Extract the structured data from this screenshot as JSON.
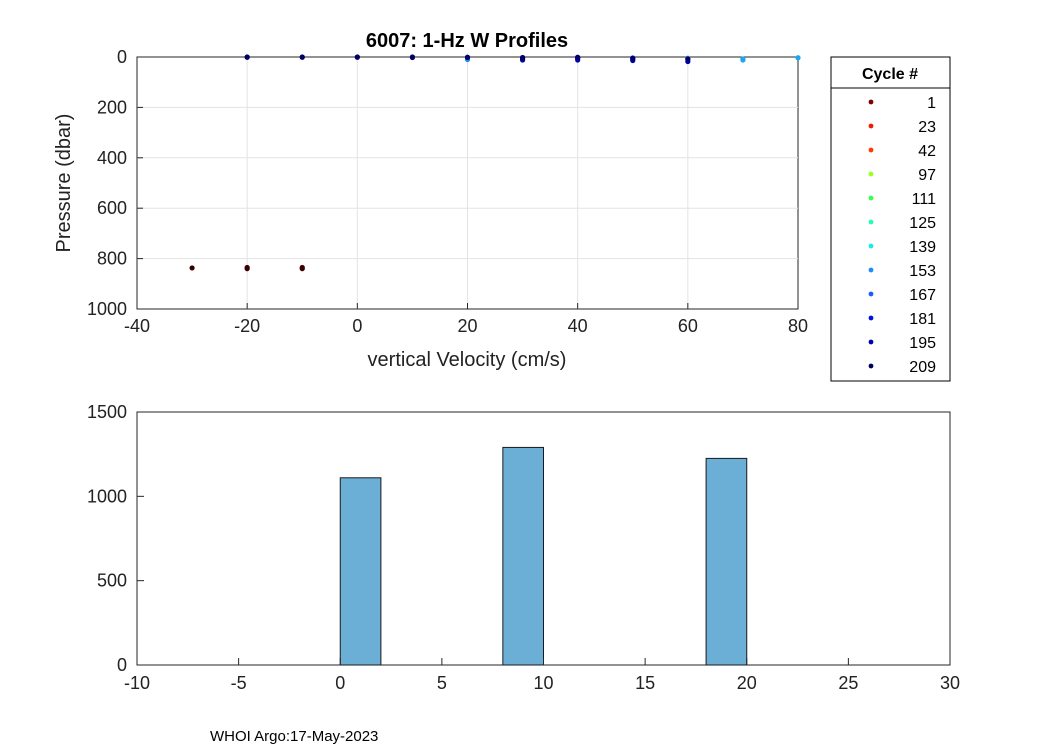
{
  "chart_data": [
    {
      "type": "scatter",
      "title": "6007: 1-Hz W Profiles",
      "xlabel": "vertical Velocity (cm/s)",
      "ylabel": "Pressure (dbar)",
      "xlim": [
        -40,
        80
      ],
      "ylim": [
        1000,
        0
      ],
      "xticks": [
        "-40",
        "-20",
        "0",
        "20",
        "40",
        "60",
        "80"
      ],
      "yticks": [
        "0",
        "200",
        "400",
        "600",
        "800",
        "1000"
      ],
      "grid": true,
      "legend": {
        "title": "Cycle #",
        "placement": "right",
        "entries": [
          {
            "label": "1",
            "color": "#800000"
          },
          {
            "label": "23",
            "color": "#ee1c00"
          },
          {
            "label": "42",
            "color": "#ff3b00"
          },
          {
            "label": "97",
            "color": "#9cff1c"
          },
          {
            "label": "111",
            "color": "#3aff4a"
          },
          {
            "label": "125",
            "color": "#22ffb0"
          },
          {
            "label": "139",
            "color": "#1ce8e8"
          },
          {
            "label": "153",
            "color": "#1c8cff"
          },
          {
            "label": "167",
            "color": "#1c5cff"
          },
          {
            "label": "181",
            "color": "#0010dd"
          },
          {
            "label": "195",
            "color": "#0000b0"
          },
          {
            "label": "209",
            "color": "#000060"
          }
        ]
      },
      "series": [
        {
          "name": "1",
          "color": "#3a0000",
          "points": [
            [
              -30,
              837
            ],
            [
              -20,
              835
            ],
            [
              -20,
              840
            ],
            [
              -10,
              835
            ],
            [
              -10,
              840
            ]
          ]
        },
        {
          "name": "139",
          "color": "#1ca8f0",
          "points": [
            [
              80,
              3
            ],
            [
              70,
              8
            ],
            [
              70,
              12
            ]
          ]
        },
        {
          "name": "153",
          "color": "#1c8cff",
          "points": [
            [
              60,
              5
            ],
            [
              60,
              12
            ],
            [
              20,
              10
            ]
          ]
        },
        {
          "name": "181",
          "color": "#0010dd",
          "points": [
            [
              50,
              4
            ],
            [
              50,
              10
            ],
            [
              40,
              5
            ],
            [
              30,
              6
            ]
          ]
        },
        {
          "name": "195",
          "color": "#0000b0",
          "points": [
            [
              -20,
              1
            ],
            [
              -10,
              0
            ],
            [
              0,
              1
            ],
            [
              10,
              2
            ],
            [
              20,
              2
            ],
            [
              30,
              2
            ],
            [
              40,
              3
            ],
            [
              50,
              14
            ],
            [
              60,
              18
            ],
            [
              30,
              12
            ],
            [
              40,
              12
            ]
          ]
        },
        {
          "name": "209",
          "color": "#000060",
          "points": [
            [
              -20,
              0
            ],
            [
              -10,
              1
            ],
            [
              0,
              0
            ],
            [
              10,
              0
            ],
            [
              20,
              1
            ],
            [
              30,
              3
            ],
            [
              40,
              1
            ],
            [
              50,
              6
            ],
            [
              60,
              8
            ]
          ]
        }
      ]
    },
    {
      "type": "bar",
      "title": "",
      "xlabel": "",
      "ylabel": "",
      "xlim": [
        -10,
        30
      ],
      "ylim": [
        0,
        1500
      ],
      "xticks": [
        "-10",
        "-5",
        "0",
        "5",
        "10",
        "15",
        "20",
        "25",
        "30"
      ],
      "yticks": [
        "0",
        "500",
        "1000",
        "1500"
      ],
      "grid": false,
      "bins": [
        {
          "from": 0,
          "to": 2,
          "value": 1110
        },
        {
          "from": 8,
          "to": 10,
          "value": 1290
        },
        {
          "from": 18,
          "to": 20,
          "value": 1225
        }
      ],
      "bar_color": "#6baed6"
    }
  ],
  "footer": "WHOI Argo:17-May-2023"
}
